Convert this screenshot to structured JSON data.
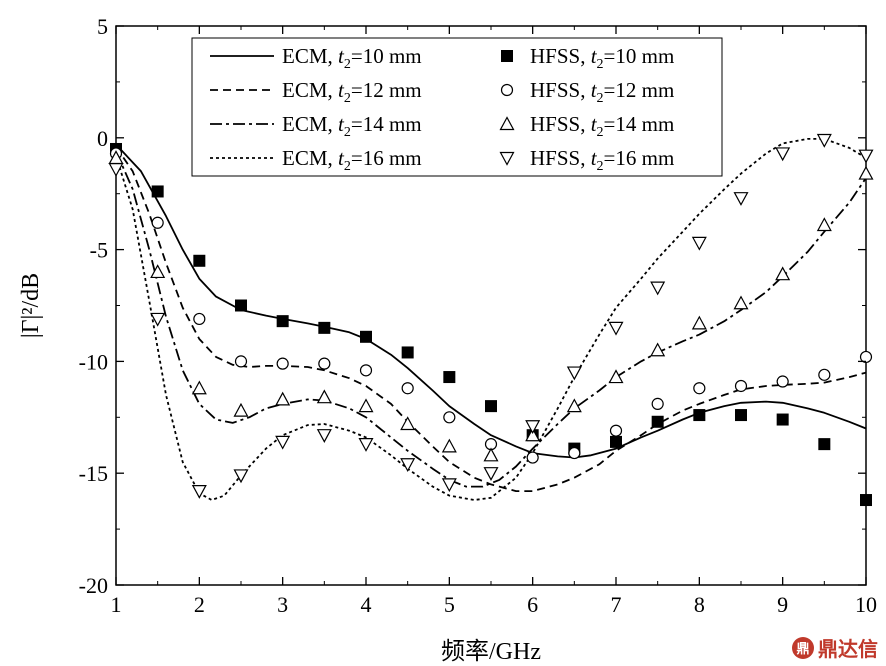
{
  "chart_data": {
    "type": "line",
    "xlabel": "频率/GHz",
    "ylabel": "|Γ|²/dB",
    "xlim": [
      1,
      10
    ],
    "ylim": [
      -20,
      5
    ],
    "x_ticks": [
      "1",
      "2",
      "3",
      "4",
      "5",
      "6",
      "7",
      "8",
      "9",
      "10"
    ],
    "y_ticks": [
      "5",
      "0",
      "-5",
      "-10",
      "-15",
      "-20"
    ],
    "grid": false,
    "legend_placement": "top",
    "series": [
      {
        "name": "ECM, t2=10 mm",
        "legend_main": "ECM, ",
        "legend_var": "t",
        "legend_sub": "2",
        "legend_rest": "=10 mm",
        "kind": "line",
        "dash": "solid",
        "x": [
          1.0,
          1.3,
          1.6,
          1.8,
          2.0,
          2.2,
          2.5,
          2.8,
          3.0,
          3.3,
          3.5,
          3.8,
          4.0,
          4.3,
          4.5,
          4.8,
          5.0,
          5.3,
          5.5,
          5.8,
          6.0,
          6.3,
          6.5,
          6.7,
          7.0,
          7.3,
          7.5,
          7.8,
          8.0,
          8.3,
          8.5,
          8.8,
          9.0,
          9.3,
          9.5,
          9.8,
          10.0
        ],
        "y": [
          -0.3,
          -1.5,
          -3.5,
          -5.0,
          -6.3,
          -7.1,
          -7.7,
          -7.95,
          -8.1,
          -8.3,
          -8.45,
          -8.7,
          -9.0,
          -9.7,
          -10.3,
          -11.3,
          -12.0,
          -12.8,
          -13.3,
          -13.8,
          -14.1,
          -14.25,
          -14.3,
          -14.2,
          -13.9,
          -13.4,
          -13.1,
          -12.6,
          -12.3,
          -12.0,
          -11.85,
          -11.8,
          -11.85,
          -12.1,
          -12.3,
          -12.7,
          -13.0
        ]
      },
      {
        "name": "ECM, t2=12 mm",
        "legend_main": "ECM, ",
        "legend_var": "t",
        "legend_sub": "2",
        "legend_rest": "=12 mm",
        "kind": "line",
        "dash": "8,5",
        "x": [
          1.0,
          1.2,
          1.4,
          1.6,
          1.8,
          2.0,
          2.2,
          2.4,
          2.6,
          2.8,
          3.0,
          3.3,
          3.5,
          3.8,
          4.0,
          4.3,
          4.5,
          4.8,
          5.0,
          5.3,
          5.5,
          5.8,
          6.0,
          6.3,
          6.5,
          6.8,
          7.0,
          7.3,
          7.5,
          7.8,
          8.0,
          8.3,
          8.5,
          8.8,
          9.0,
          9.3,
          9.5,
          9.8,
          10.0
        ],
        "y": [
          -0.4,
          -1.5,
          -3.4,
          -5.6,
          -7.6,
          -9.0,
          -9.8,
          -10.15,
          -10.25,
          -10.2,
          -10.2,
          -10.25,
          -10.4,
          -10.75,
          -11.1,
          -11.9,
          -12.7,
          -13.8,
          -14.5,
          -15.2,
          -15.5,
          -15.8,
          -15.8,
          -15.5,
          -15.2,
          -14.6,
          -14.0,
          -13.3,
          -12.8,
          -12.2,
          -11.9,
          -11.5,
          -11.25,
          -11.1,
          -11.05,
          -11.0,
          -10.95,
          -10.7,
          -10.5
        ]
      },
      {
        "name": "ECM, t2=14 mm",
        "legend_main": "ECM, ",
        "legend_var": "t",
        "legend_sub": "2",
        "legend_rest": "=14 mm",
        "kind": "line",
        "dash": "12,4,3,4",
        "x": [
          1.0,
          1.2,
          1.4,
          1.6,
          1.8,
          2.0,
          2.2,
          2.4,
          2.6,
          2.8,
          3.0,
          3.3,
          3.5,
          3.8,
          4.0,
          4.3,
          4.5,
          4.8,
          5.0,
          5.2,
          5.4,
          5.6,
          5.8,
          6.0,
          6.3,
          6.5,
          6.8,
          7.0,
          7.3,
          7.5,
          7.8,
          8.0,
          8.3,
          8.5,
          8.8,
          9.0,
          9.3,
          9.5,
          9.8,
          10.0
        ],
        "y": [
          -0.6,
          -2.3,
          -5.0,
          -8.0,
          -10.4,
          -11.9,
          -12.6,
          -12.75,
          -12.5,
          -12.1,
          -11.9,
          -11.7,
          -11.75,
          -12.1,
          -12.5,
          -13.4,
          -14.0,
          -14.8,
          -15.3,
          -15.6,
          -15.6,
          -15.3,
          -14.7,
          -13.9,
          -12.8,
          -12.1,
          -11.3,
          -10.7,
          -10.0,
          -9.6,
          -9.1,
          -8.8,
          -8.2,
          -7.7,
          -6.9,
          -6.2,
          -5.1,
          -4.2,
          -2.9,
          -1.8
        ]
      },
      {
        "name": "ECM, t2=16 mm",
        "legend_main": "ECM, ",
        "legend_var": "t",
        "legend_sub": "2",
        "legend_rest": "=16 mm",
        "kind": "line",
        "dash": "3,3",
        "x": [
          1.0,
          1.2,
          1.4,
          1.6,
          1.8,
          2.0,
          2.15,
          2.3,
          2.5,
          2.8,
          3.0,
          3.3,
          3.5,
          3.8,
          4.0,
          4.3,
          4.5,
          4.8,
          5.0,
          5.3,
          5.5,
          5.8,
          6.0,
          6.3,
          6.5,
          6.8,
          7.0,
          7.3,
          7.5,
          7.8,
          8.0,
          8.3,
          8.5,
          8.8,
          9.0,
          9.3,
          9.5,
          9.8,
          10.0
        ],
        "y": [
          -0.8,
          -3.2,
          -7.3,
          -11.5,
          -14.5,
          -15.9,
          -16.2,
          -16.0,
          -15.1,
          -13.9,
          -13.3,
          -12.85,
          -12.8,
          -13.1,
          -13.4,
          -14.2,
          -14.8,
          -15.6,
          -16.0,
          -16.2,
          -16.1,
          -15.2,
          -14.1,
          -12.1,
          -10.7,
          -8.8,
          -7.6,
          -6.3,
          -5.4,
          -4.2,
          -3.4,
          -2.3,
          -1.6,
          -0.7,
          -0.25,
          -0.05,
          -0.05,
          -0.45,
          -0.9
        ]
      },
      {
        "name": "HFSS, t2=10 mm",
        "legend_main": "HFSS, ",
        "legend_var": "t",
        "legend_sub": "2",
        "legend_rest": "=10 mm",
        "kind": "marker",
        "marker": "square",
        "x": [
          1.0,
          1.5,
          2.0,
          2.5,
          3.0,
          3.5,
          4.0,
          4.5,
          5.0,
          5.5,
          6.0,
          6.5,
          7.0,
          7.5,
          8.0,
          8.5,
          9.0,
          9.5,
          10.0
        ],
        "y": [
          -0.5,
          -2.4,
          -5.5,
          -7.5,
          -8.2,
          -8.5,
          -8.9,
          -9.6,
          -10.7,
          -12.0,
          -13.3,
          -13.9,
          -13.6,
          -12.7,
          -12.4,
          -12.4,
          -12.6,
          -13.7,
          -16.2
        ]
      },
      {
        "name": "HFSS, t2=12 mm",
        "legend_main": "HFSS, ",
        "legend_var": "t",
        "legend_sub": "2",
        "legend_rest": "=12 mm",
        "kind": "marker",
        "marker": "circle",
        "x": [
          1.0,
          1.5,
          2.0,
          2.5,
          3.0,
          3.5,
          4.0,
          4.5,
          5.0,
          5.5,
          6.0,
          6.5,
          7.0,
          7.5,
          8.0,
          8.5,
          9.0,
          9.5,
          10.0
        ],
        "y": [
          -0.7,
          -3.8,
          -8.1,
          -10.0,
          -10.1,
          -10.1,
          -10.4,
          -11.2,
          -12.5,
          -13.7,
          -14.3,
          -14.1,
          -13.1,
          -11.9,
          -11.2,
          -11.1,
          -10.9,
          -10.6,
          -9.8
        ]
      },
      {
        "name": "HFSS, t2=14 mm",
        "legend_main": "HFSS, ",
        "legend_var": "t",
        "legend_sub": "2",
        "legend_rest": "=14 mm",
        "kind": "marker",
        "marker": "triangle-up",
        "x": [
          1.0,
          1.5,
          2.0,
          2.5,
          3.0,
          3.5,
          4.0,
          4.5,
          5.0,
          5.5,
          6.0,
          6.5,
          7.0,
          7.5,
          8.0,
          8.5,
          9.0,
          9.5,
          10.0
        ],
        "y": [
          -0.9,
          -6.0,
          -11.2,
          -12.2,
          -11.7,
          -11.6,
          -12.0,
          -12.8,
          -13.8,
          -14.2,
          -13.3,
          -12.0,
          -10.7,
          -9.5,
          -8.3,
          -7.4,
          -6.1,
          -3.9,
          -1.6
        ]
      },
      {
        "name": "HFSS, t2=16 mm",
        "legend_main": "HFSS, ",
        "legend_var": "t",
        "legend_sub": "2",
        "legend_rest": "=16 mm",
        "kind": "marker",
        "marker": "triangle-down",
        "x": [
          1.0,
          1.5,
          2.0,
          2.5,
          3.0,
          3.5,
          4.0,
          4.5,
          5.0,
          5.5,
          6.0,
          6.5,
          7.0,
          7.5,
          8.0,
          8.5,
          9.0,
          9.5,
          10.0
        ],
        "y": [
          -1.4,
          -8.1,
          -15.8,
          -15.1,
          -13.6,
          -13.3,
          -13.7,
          -14.6,
          -15.5,
          -15.0,
          -12.9,
          -10.5,
          -8.5,
          -6.7,
          -4.7,
          -2.7,
          -0.7,
          -0.1,
          -0.8
        ]
      }
    ]
  },
  "watermark": {
    "seal": "鼎",
    "text": "鼎达信"
  }
}
